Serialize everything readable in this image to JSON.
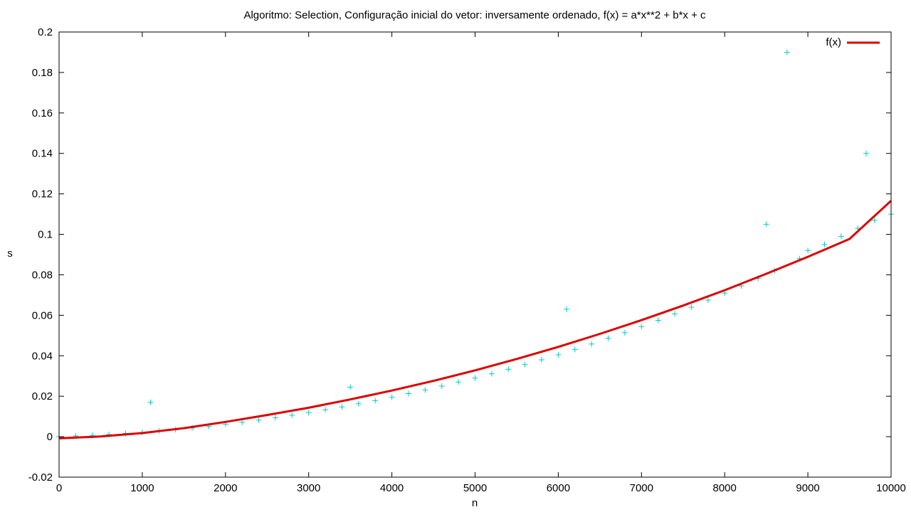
{
  "chart_data": {
    "type": "scatter",
    "title": "Algoritmo: Selection, Configuração inicial do vetor: inversamente ordenado, f(x) = a*x**2 + b*x + c",
    "xlabel": "n",
    "ylabel": "s",
    "xlim": [
      0,
      10000
    ],
    "ylim": [
      -0.02,
      0.2
    ],
    "x_ticks": [
      0,
      1000,
      2000,
      3000,
      4000,
      5000,
      6000,
      7000,
      8000,
      9000,
      10000
    ],
    "x_tick_labels": [
      "0",
      "1000",
      "2000",
      "3000",
      "4000",
      "5000",
      "6000",
      "7000",
      "8000",
      "9000",
      "10000"
    ],
    "y_ticks": [
      -0.02,
      0,
      0.02,
      0.04,
      0.06,
      0.08,
      0.1,
      0.12,
      0.14,
      0.16,
      0.18,
      0.2
    ],
    "y_tick_labels": [
      "-0.02",
      "0",
      "0.02",
      "0.04",
      "0.06",
      "0.08",
      "0.1",
      "0.12",
      "0.14",
      "0.16",
      "0.18",
      "0.2"
    ],
    "grid": false,
    "legend": {
      "placement": "top-right",
      "entries": [
        "f(x)"
      ]
    },
    "series": [
      {
        "kind": "points",
        "marker": "plus",
        "color": "#00cccc",
        "x": [
          0,
          200,
          400,
          600,
          800,
          1000,
          1100,
          1200,
          1400,
          1600,
          1800,
          2000,
          2200,
          2400,
          2600,
          2800,
          3000,
          3200,
          3400,
          3500,
          3600,
          3800,
          4000,
          4200,
          4400,
          4600,
          4800,
          5000,
          5200,
          5400,
          5600,
          5800,
          6000,
          6100,
          6200,
          6400,
          6600,
          6800,
          7000,
          7200,
          7400,
          7600,
          7800,
          8000,
          8200,
          8400,
          8500,
          8600,
          8750,
          8900,
          9000,
          9200,
          9400,
          9600,
          9700,
          9800,
          10000
        ],
        "y": [
          0.0,
          0.0004,
          0.0007,
          0.0011,
          0.0016,
          0.0021,
          0.017,
          0.0028,
          0.0035,
          0.0043,
          0.0051,
          0.0062,
          0.0071,
          0.0082,
          0.0094,
          0.0106,
          0.0119,
          0.0133,
          0.0147,
          0.0245,
          0.0163,
          0.0178,
          0.0195,
          0.0213,
          0.0231,
          0.025,
          0.027,
          0.029,
          0.0311,
          0.0333,
          0.0356,
          0.038,
          0.0405,
          0.063,
          0.0431,
          0.0458,
          0.0486,
          0.0514,
          0.0544,
          0.0575,
          0.0607,
          0.064,
          0.0675,
          0.071,
          0.0745,
          0.0782,
          0.105,
          0.082,
          0.19,
          0.088,
          0.092,
          0.095,
          0.099,
          0.103,
          0.14,
          0.107,
          0.11
        ]
      },
      {
        "name": "f(x)",
        "kind": "line",
        "color": "#dd0000",
        "x": [
          0,
          500,
          1000,
          1500,
          2000,
          2500,
          3000,
          3500,
          4000,
          4500,
          5000,
          5500,
          6000,
          6500,
          7000,
          7500,
          8000,
          8500,
          9000,
          9500,
          10000
        ],
        "y": [
          -0.0008,
          0.0001,
          0.0018,
          0.0042,
          0.0073,
          0.0107,
          0.0143,
          0.0184,
          0.0228,
          0.0276,
          0.0328,
          0.0384,
          0.0444,
          0.0508,
          0.0576,
          0.0648,
          0.0724,
          0.0805,
          0.0889,
          0.0977,
          0.1166
        ]
      }
    ]
  }
}
